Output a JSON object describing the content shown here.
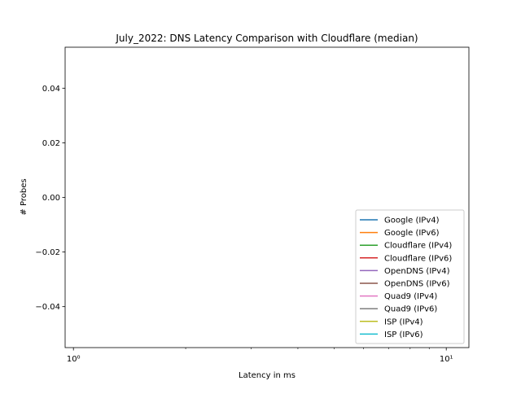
{
  "chart_data": {
    "type": "line",
    "title": "July_2022: DNS Latency Comparison with Cloudflare (median)",
    "xlabel": "Latency in ms",
    "ylabel": "# Probes",
    "xscale": "log",
    "xlim": [
      0.95,
      11.5
    ],
    "ylim": [
      -0.055,
      0.055
    ],
    "xticks": [
      {
        "value": 1,
        "label": "10⁰"
      },
      {
        "value": 10,
        "label": "10¹"
      }
    ],
    "yticks": [
      {
        "value": 0.04,
        "label": "0.04"
      },
      {
        "value": 0.02,
        "label": "0.02"
      },
      {
        "value": 0.0,
        "label": "0.00"
      },
      {
        "value": -0.02,
        "label": "−0.02"
      },
      {
        "value": -0.04,
        "label": "−0.04"
      }
    ],
    "grid": false,
    "legend_position": "lower-right",
    "series": [
      {
        "name": "Google (IPv4)",
        "color": "#1f77b4",
        "x": [],
        "y": []
      },
      {
        "name": "Google (IPv6)",
        "color": "#ff7f0e",
        "x": [],
        "y": []
      },
      {
        "name": "Cloudflare (IPv4)",
        "color": "#2ca02c",
        "x": [],
        "y": []
      },
      {
        "name": "Cloudflare (IPv6)",
        "color": "#d62728",
        "x": [],
        "y": []
      },
      {
        "name": "OpenDNS (IPv4)",
        "color": "#9467bd",
        "x": [],
        "y": []
      },
      {
        "name": "OpenDNS (IPv6)",
        "color": "#8c564b",
        "x": [],
        "y": []
      },
      {
        "name": "Quad9 (IPv4)",
        "color": "#e377c2",
        "x": [],
        "y": []
      },
      {
        "name": "Quad9 (IPv6)",
        "color": "#7f7f7f",
        "x": [],
        "y": []
      },
      {
        "name": "ISP (IPv4)",
        "color": "#bcbd22",
        "x": [],
        "y": []
      },
      {
        "name": "ISP (IPv6)",
        "color": "#17becf",
        "x": [],
        "y": []
      }
    ]
  }
}
